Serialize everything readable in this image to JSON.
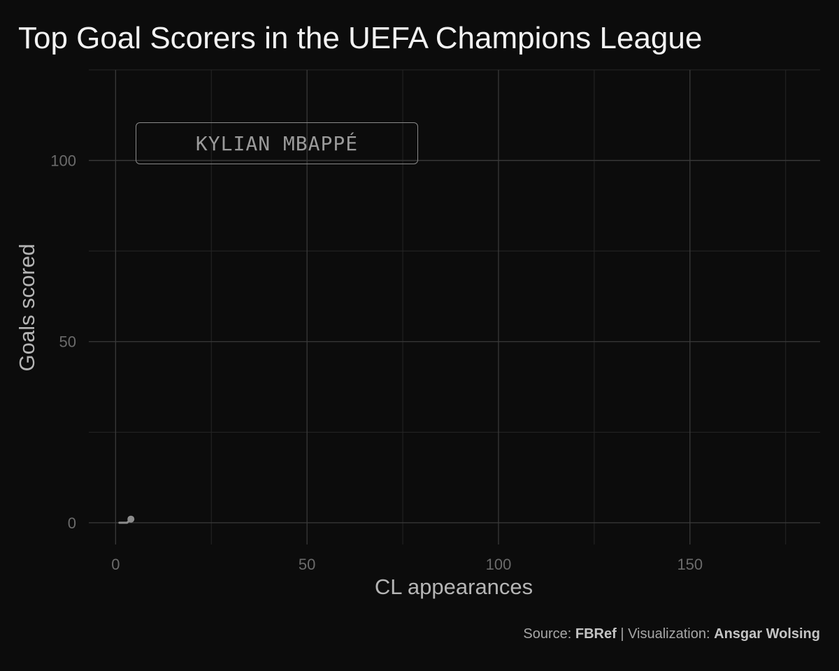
{
  "chart_data": {
    "type": "line",
    "title": "Top Goal Scorers in the UEFA Champions League",
    "xlabel": "CL appearances",
    "ylabel": "Goals scored",
    "xlim": [
      -7,
      184
    ],
    "ylim": [
      -6,
      125
    ],
    "x_major_ticks": [
      0,
      50,
      100,
      150
    ],
    "x_minor_ticks": [
      25,
      75,
      125,
      175
    ],
    "y_major_ticks": [
      0,
      50,
      100
    ],
    "y_minor_ticks": [
      25,
      75,
      125
    ],
    "x_tick_labels": [
      "0",
      "50",
      "100",
      "150"
    ],
    "y_tick_labels": [
      "0",
      "50",
      "100"
    ],
    "grid": true,
    "series": [
      {
        "name": "KYLIAN MBAPPÉ",
        "x": [
          1,
          2,
          3,
          4
        ],
        "y": [
          0,
          0,
          0,
          1
        ],
        "color": "#8c8c8c"
      }
    ],
    "label_box": "KYLIAN MBAPPÉ"
  },
  "caption": {
    "source_prefix": "Source: ",
    "source": "FBRef",
    "separator": " | Visualization: ",
    "author": "Ansgar Wolsing"
  },
  "colors": {
    "background": "#0c0c0c",
    "series": "#8c8c8c"
  }
}
